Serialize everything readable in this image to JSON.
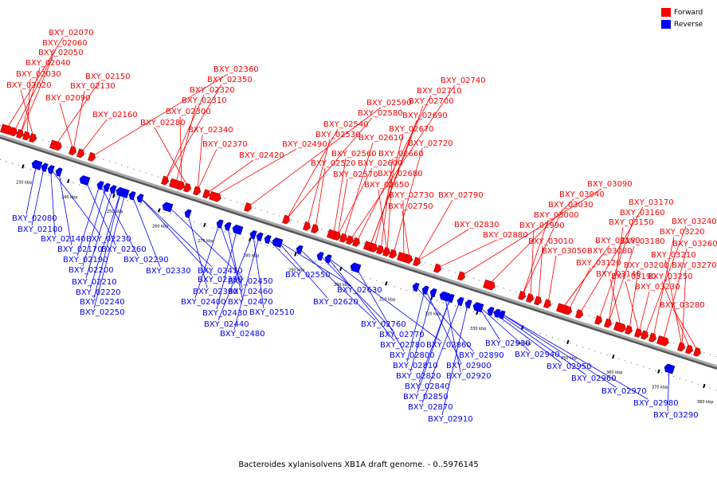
{
  "caption": "Bacteroides xylanisolvens XB1A draft genome. - 0..5976145",
  "legend": [
    {
      "label": "Forward",
      "color": "#ff0000"
    },
    {
      "label": "Reverse",
      "color": "#0000ff"
    }
  ],
  "colors": {
    "forward": "#ff0000",
    "reverse": "#0000ff",
    "backbone": "#888888"
  },
  "axis_ticks": [
    "230 kbp",
    "240 kbp",
    "250 kbp",
    "260 kbp",
    "270 kbp",
    "280 kbp",
    "290 kbp",
    "300 kbp",
    "310 kbp",
    "320 kbp",
    "330 kbp",
    "340 kbp",
    "350 kbp",
    "360 kbp",
    "370 kbp",
    "380 kbp"
  ],
  "forward_labels": [
    "BXY_02070",
    "BXY_02060",
    "BXY_02050",
    "BXY_02040",
    "BXY_02030",
    "BXY_02020",
    "BXY_02150",
    "BXY_02130",
    "BXY_02090",
    "BXY_02160",
    "BXY_02360",
    "BXY_02350",
    "BXY_02320",
    "BXY_02310",
    "BXY_02300",
    "BXY_02280",
    "BXY_02340",
    "BXY_02370",
    "BXY_02420",
    "BXY_02490",
    "BXY_02590",
    "BXY_02580",
    "BXY_02540",
    "BXY_02530",
    "BXY_02520",
    "BXY_02560",
    "BXY_02570",
    "BXY_02600",
    "BXY_02610",
    "BXY_02740",
    "BXY_02710",
    "BXY_02700",
    "BXY_02690",
    "BXY_02670",
    "BXY_02660",
    "BXY_02680",
    "BXY_02650",
    "BXY_02720",
    "BXY_02730",
    "BXY_02750",
    "BXY_02790",
    "BXY_02830",
    "BXY_02880",
    "BXY_03090",
    "BXY_03040",
    "BXY_03030",
    "BXY_03000",
    "BXY_02990",
    "BXY_03010",
    "BXY_03050",
    "BXY_03080",
    "BXY_03100",
    "BXY_03120",
    "BXY_03170",
    "BXY_03160",
    "BXY_03150",
    "BXY_03180",
    "BXY_03140",
    "BXY_03200",
    "BXY_03190",
    "BXY_03230",
    "BXY_03240",
    "BXY_03220",
    "BXY_03260",
    "BXY_03210",
    "BXY_03270",
    "BXY_03250",
    "BXY_03280"
  ],
  "reverse_labels": [
    "BXY_02080",
    "BXY_02100",
    "BXY_02140",
    "BXY_02230",
    "BXY_02170",
    "BXY_02260",
    "BXY_02190",
    "BXY_02290",
    "BXY_02200",
    "BXY_02210",
    "BXY_02220",
    "BXY_02240",
    "BXY_02250",
    "BXY_02330",
    "BXY_02410",
    "BXY_02380",
    "BXY_02450",
    "BXY_02390",
    "BXY_02460",
    "BXY_02400",
    "BXY_02470",
    "BXY_02430",
    "BXY_02510",
    "BXY_02440",
    "BXY_02480",
    "BXY_02550",
    "BXY_02630",
    "BXY_02620",
    "BXY_02760",
    "BXY_02770",
    "BXY_02780",
    "BXY_02860",
    "BXY_02800",
    "BXY_02890",
    "BXY_02810",
    "BXY_02900",
    "BXY_02820",
    "BXY_02920",
    "BXY_02840",
    "BXY_02850",
    "BXY_02870",
    "BXY_02910",
    "BXY_02930",
    "BXY_02940",
    "BXY_02950",
    "BXY_02960",
    "BXY_02970",
    "BXY_02980",
    "BXY_03290"
  ]
}
